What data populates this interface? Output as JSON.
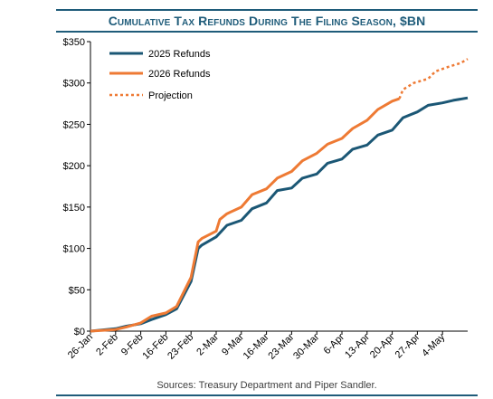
{
  "chart_data": {
    "type": "line",
    "title": "Cumulative Tax Refunds During The Filing Season, $BN",
    "xlabel": "",
    "ylabel": "",
    "ylim": [
      0,
      350
    ],
    "yticks": [
      "$0",
      "$50",
      "$100",
      "$150",
      "$200",
      "$250",
      "$300",
      "$350"
    ],
    "ytick_values": [
      0,
      50,
      100,
      150,
      200,
      250,
      300,
      350
    ],
    "xticks": [
      "26-Jan",
      "2-Feb",
      "9-Feb",
      "16-Feb",
      "23-Feb",
      "2-Mar",
      "9-Mar",
      "16-Mar",
      "23-Mar",
      "30-Mar",
      "6-Apr",
      "13-Apr",
      "20-Apr",
      "27-Apr",
      "4-May"
    ],
    "x_start": "2026-01-26",
    "x_end": "2026-05-11",
    "legend_position": "top-left",
    "grid": "none",
    "series": [
      {
        "name": "2025 Refunds",
        "color": "#1b5775",
        "style": "solid",
        "points": [
          [
            "2026-01-26",
            0
          ],
          [
            "2026-02-02",
            3
          ],
          [
            "2026-02-05",
            6
          ],
          [
            "2026-02-09",
            9
          ],
          [
            "2026-02-12",
            14
          ],
          [
            "2026-02-16",
            20
          ],
          [
            "2026-02-19",
            27
          ],
          [
            "2026-02-23",
            60
          ],
          [
            "2026-02-25",
            100
          ],
          [
            "2026-02-26",
            104
          ],
          [
            "2026-03-02",
            114
          ],
          [
            "2026-03-05",
            128
          ],
          [
            "2026-03-09",
            134
          ],
          [
            "2026-03-12",
            148
          ],
          [
            "2026-03-16",
            155
          ],
          [
            "2026-03-19",
            170
          ],
          [
            "2026-03-23",
            173
          ],
          [
            "2026-03-26",
            185
          ],
          [
            "2026-03-30",
            190
          ],
          [
            "2026-04-02",
            203
          ],
          [
            "2026-04-06",
            208
          ],
          [
            "2026-04-09",
            220
          ],
          [
            "2026-04-13",
            225
          ],
          [
            "2026-04-16",
            237
          ],
          [
            "2026-04-20",
            243
          ],
          [
            "2026-04-23",
            258
          ],
          [
            "2026-04-27",
            265
          ],
          [
            "2026-04-30",
            273
          ],
          [
            "2026-05-04",
            276
          ],
          [
            "2026-05-07",
            279
          ],
          [
            "2026-05-11",
            282
          ]
        ]
      },
      {
        "name": "2026 Refunds",
        "color": "#ee7a34",
        "style": "solid",
        "points": [
          [
            "2026-01-26",
            0
          ],
          [
            "2026-02-02",
            2
          ],
          [
            "2026-02-05",
            5
          ],
          [
            "2026-02-09",
            10
          ],
          [
            "2026-02-12",
            18
          ],
          [
            "2026-02-16",
            22
          ],
          [
            "2026-02-19",
            30
          ],
          [
            "2026-02-23",
            65
          ],
          [
            "2026-02-25",
            108
          ],
          [
            "2026-02-26",
            112
          ],
          [
            "2026-03-02",
            121
          ],
          [
            "2026-03-03",
            135
          ],
          [
            "2026-03-05",
            142
          ],
          [
            "2026-03-09",
            150
          ],
          [
            "2026-03-12",
            165
          ],
          [
            "2026-03-16",
            172
          ],
          [
            "2026-03-19",
            185
          ],
          [
            "2026-03-23",
            193
          ],
          [
            "2026-03-26",
            206
          ],
          [
            "2026-03-30",
            215
          ],
          [
            "2026-04-02",
            226
          ],
          [
            "2026-04-06",
            233
          ],
          [
            "2026-04-09",
            245
          ],
          [
            "2026-04-13",
            255
          ],
          [
            "2026-04-16",
            268
          ],
          [
            "2026-04-20",
            278
          ],
          [
            "2026-04-22",
            281
          ]
        ]
      },
      {
        "name": "Projection",
        "color": "#ee7a34",
        "style": "dotted",
        "points": [
          [
            "2026-04-22",
            281
          ],
          [
            "2026-04-23",
            292
          ],
          [
            "2026-04-26",
            300
          ],
          [
            "2026-04-30",
            305
          ],
          [
            "2026-05-02",
            314
          ],
          [
            "2026-05-06",
            320
          ],
          [
            "2026-05-09",
            324
          ],
          [
            "2026-05-11",
            329
          ]
        ]
      }
    ]
  },
  "footer": {
    "source": "Sources: Treasury Department and Piper Sandler."
  }
}
